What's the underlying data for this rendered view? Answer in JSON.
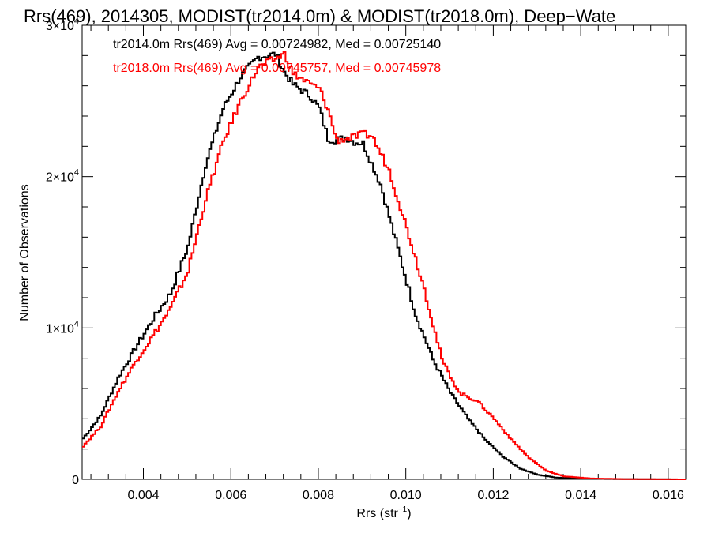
{
  "chart_data": {
    "type": "line",
    "title": "Rrs(469), 2014305, MODIST(tr2014.0m) & MODIST(tr2018.0m), Deep−Wate",
    "xlabel": "Rrs (str",
    "xlabel_sup": "−1",
    "xlabel_end": ")",
    "ylabel": "Number of Observations",
    "xlim": [
      0.0026,
      0.0164
    ],
    "ylim": [
      0,
      30000
    ],
    "x_ticks": [
      0.004,
      0.006,
      0.008,
      0.01,
      0.012,
      0.014,
      0.016
    ],
    "x_tick_labels": [
      "0.004",
      "0.006",
      "0.008",
      "0.010",
      "0.012",
      "0.014",
      "0.016"
    ],
    "y_ticks": [
      {
        "value": 0,
        "mantissa": "0",
        "exp": ""
      },
      {
        "value": 10000,
        "mantissa": "1×10",
        "exp": "4"
      },
      {
        "value": 20000,
        "mantissa": "2×10",
        "exp": "4"
      },
      {
        "value": 30000,
        "mantissa": "3×10",
        "exp": "4"
      }
    ],
    "grid": false,
    "legend_position": "top-left",
    "series": [
      {
        "name": "tr2014.0m",
        "color": "#000000",
        "label": "tr2014.0m Rrs(469) Avg = 0.00724982, Med = 0.00725140",
        "x": [
          0.0026,
          0.003,
          0.0034,
          0.0038,
          0.0042,
          0.0046,
          0.005,
          0.0054,
          0.0058,
          0.0062,
          0.0066,
          0.007,
          0.0072,
          0.0074,
          0.0078,
          0.008,
          0.0082,
          0.0084,
          0.0086,
          0.0088,
          0.009,
          0.0094,
          0.0098,
          0.0102,
          0.0106,
          0.011,
          0.0114,
          0.0118,
          0.0122,
          0.0126,
          0.013,
          0.0134,
          0.014,
          0.015,
          0.0164
        ],
        "y": [
          2700,
          4200,
          6700,
          8700,
          10600,
          12300,
          15400,
          20800,
          24500,
          26600,
          27900,
          28100,
          26900,
          26100,
          25300,
          24500,
          22500,
          22400,
          22600,
          22300,
          22200,
          19500,
          15200,
          10900,
          7900,
          5700,
          4000,
          2600,
          1500,
          700,
          300,
          120,
          40,
          10,
          0
        ]
      },
      {
        "name": "tr2018.0m",
        "color": "#ff0000",
        "label": "tr2018.0m Rrs(469) Avg = 0.00745757, Med = 0.00745978",
        "x": [
          0.0026,
          0.003,
          0.0034,
          0.0038,
          0.0042,
          0.0046,
          0.005,
          0.0054,
          0.0058,
          0.0062,
          0.0066,
          0.007,
          0.0072,
          0.0074,
          0.0078,
          0.008,
          0.0082,
          0.0084,
          0.0086,
          0.0088,
          0.009,
          0.0092,
          0.0096,
          0.01,
          0.0104,
          0.0108,
          0.0112,
          0.0116,
          0.012,
          0.0124,
          0.0128,
          0.0132,
          0.0136,
          0.0142,
          0.015,
          0.0164
        ],
        "y": [
          2200,
          3500,
          5800,
          7800,
          9500,
          11300,
          13800,
          18500,
          22300,
          25000,
          27200,
          27800,
          28100,
          26800,
          26100,
          25800,
          24400,
          22400,
          22500,
          22600,
          22800,
          22700,
          20400,
          16600,
          12600,
          7900,
          5700,
          5200,
          4000,
          2600,
          1400,
          550,
          200,
          60,
          15,
          0
        ]
      }
    ]
  }
}
